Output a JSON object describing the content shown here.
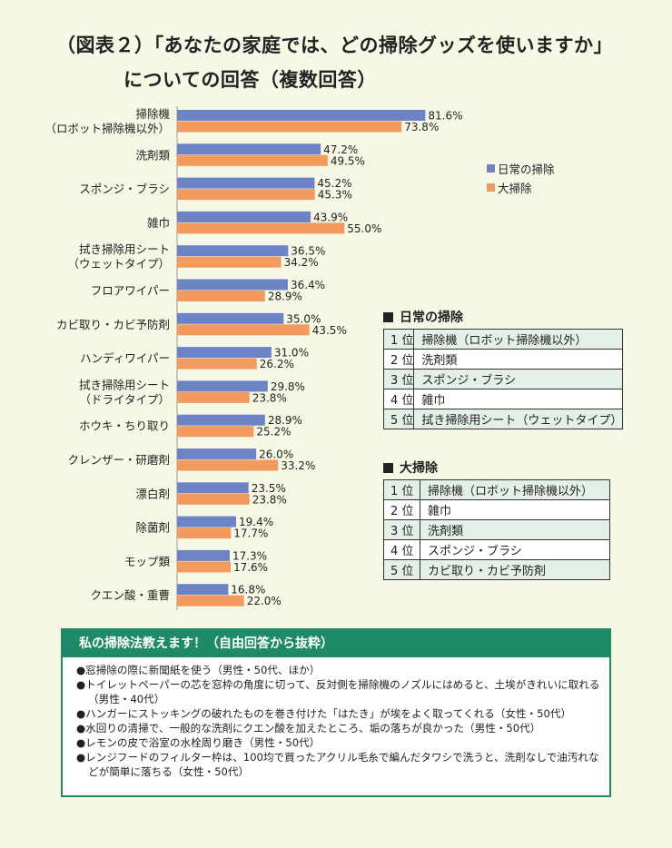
{
  "title_line1": "（図表２）「あなたの家庭では、どの掃除グッズを使いますか」",
  "title_line2": "についての回答（複数回答）",
  "colors": {
    "daily": "#6c84c6",
    "big": "#f39a5e",
    "accent": "#1e8a68"
  },
  "chart_data": {
    "type": "bar",
    "orientation": "horizontal",
    "categories": [
      "掃除機\n（ロボット掃除機以外）",
      "洗剤類",
      "スポンジ・ブラシ",
      "雑巾",
      "拭き掃除用シート\n（ウェットタイプ）",
      "フロアワイパー",
      "カビ取り・カビ予防剤",
      "ハンディワイパー",
      "拭き掃除用シート\n（ドライタイプ）",
      "ホウキ・ちり取り",
      "クレンザー・研磨剤",
      "漂白剤",
      "除菌剤",
      "モップ類",
      "クエン酸・重曹"
    ],
    "series": [
      {
        "name": "日常の掃除",
        "values": [
          81.6,
          47.2,
          45.2,
          43.9,
          36.5,
          36.4,
          35.0,
          31.0,
          29.8,
          28.9,
          26.0,
          23.5,
          19.4,
          17.3,
          16.8
        ]
      },
      {
        "name": "大掃除",
        "values": [
          73.8,
          49.5,
          45.3,
          55.0,
          34.2,
          28.9,
          43.5,
          26.2,
          23.8,
          25.2,
          33.2,
          23.8,
          17.7,
          17.6,
          22.0
        ]
      }
    ],
    "value_labels": [
      [
        "81.6%",
        "47.2%",
        "45.2%",
        "43.9%",
        "36.5%",
        "36.4%",
        "35.0%",
        "31.0%",
        "29.8%",
        "28.9%",
        "26.0%",
        "23.5%",
        "19.4%",
        "17.3%",
        "16.8%"
      ],
      [
        "73.8%",
        "49.5%",
        "45.3%",
        "55.0%",
        "34.2%",
        "28.9%",
        "43.5%",
        "26.2%",
        "23.8%",
        "25.2%",
        "33.2%",
        "23.8%",
        "17.7%",
        "17.6%",
        "22.0%"
      ]
    ],
    "xlim": [
      0,
      100
    ],
    "legend_position": "top-right",
    "grid": false
  },
  "ranking_daily": {
    "heading": "日常の掃除",
    "rows": [
      {
        "rank": "1 位",
        "item": "掃除機（ロボット掃除機以外）"
      },
      {
        "rank": "2 位",
        "item": "洗剤類"
      },
      {
        "rank": "3 位",
        "item": "スポンジ・ブラシ"
      },
      {
        "rank": "4 位",
        "item": "雑巾"
      },
      {
        "rank": "5 位",
        "item": "拭き掃除用シート（ウェットタイプ）"
      }
    ]
  },
  "ranking_big": {
    "heading": "大掃除",
    "rows": [
      {
        "rank": "1 位",
        "item": "掃除機（ロボット掃除機以外）"
      },
      {
        "rank": "2 位",
        "item": "雑巾"
      },
      {
        "rank": "3 位",
        "item": "洗剤類"
      },
      {
        "rank": "4 位",
        "item": "スポンジ・ブラシ"
      },
      {
        "rank": "5 位",
        "item": "カビ取り・カビ予防剤"
      }
    ]
  },
  "tips": {
    "header": "私の掃除法教えます！（自由回答から抜粋）",
    "items": [
      "窓掃除の際に新聞紙を使う（男性・50代、ほか）",
      "トイレットペーパーの芯を窓枠の角度に切って、反対側を掃除機のノズルにはめると、土埃がきれいに取れる（男性・40代）",
      "ハンガーにストッキングの破れたものを巻き付けた「はたき」が埃をよく取ってくれる（女性・50代）",
      "水回りの清掃で、一般的な洗剤にクエン酸を加えたところ、垢の落ちが良かった（男性・50代）",
      "レモンの皮で浴室の水栓周り磨き（男性・50代）",
      "レンジフードのフィルター枠は、100均で買ったアクリル毛糸で編んだタワシで洗うと、洗剤なしで油汚れなどが簡単に落ちる（女性・50代）"
    ]
  }
}
